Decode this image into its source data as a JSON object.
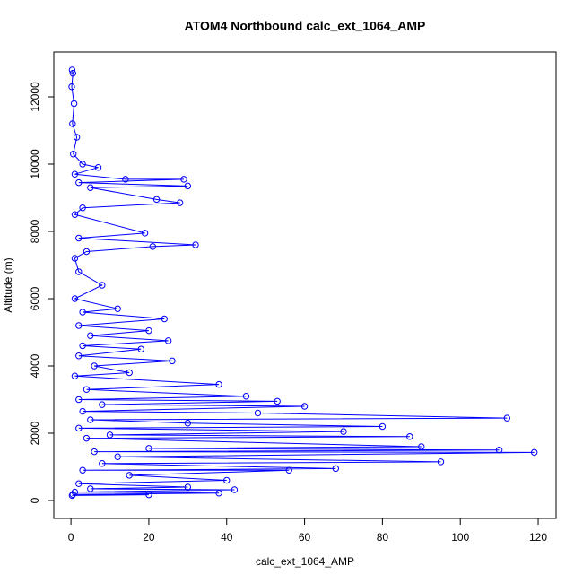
{
  "chart_data": {
    "type": "line",
    "title": "ATOM4 Northbound calc_ext_1064_AMP",
    "x_label": "calc_ext_1064_AMP",
    "y_label": "Altitude (m)",
    "color": "#0000ff",
    "markers": true,
    "x": [
      0.3,
      0.5,
      0.2,
      0.8,
      0.4,
      1.5,
      0.6,
      3,
      7,
      1,
      14,
      29,
      2,
      30,
      5,
      22,
      28,
      3,
      1,
      19,
      2,
      32,
      21,
      4,
      1,
      2,
      8,
      1,
      12,
      3,
      24,
      2,
      20,
      5,
      25,
      3,
      18,
      2,
      26,
      6,
      15,
      1,
      38,
      4,
      45,
      2,
      53,
      8,
      60,
      3,
      48,
      112,
      5,
      30,
      80,
      2,
      70,
      10,
      87,
      4,
      90,
      20,
      110,
      6,
      119,
      12,
      95,
      8,
      68,
      3,
      56,
      15,
      40,
      2,
      30,
      5,
      42,
      1,
      38,
      0.5,
      20,
      0.3
    ],
    "values": [
      12800,
      12700,
      12300,
      11800,
      11200,
      10800,
      10300,
      10000,
      9900,
      9700,
      9550,
      9550,
      9450,
      9350,
      9300,
      8950,
      8850,
      8700,
      8500,
      7950,
      7800,
      7600,
      7550,
      7400,
      7200,
      6800,
      6400,
      6000,
      5700,
      5600,
      5400,
      5200,
      5050,
      4900,
      4750,
      4600,
      4500,
      4300,
      4150,
      4000,
      3800,
      3700,
      3450,
      3300,
      3100,
      3000,
      2950,
      2850,
      2800,
      2650,
      2600,
      2450,
      2400,
      2300,
      2200,
      2150,
      2050,
      1950,
      1900,
      1850,
      1600,
      1550,
      1500,
      1450,
      1430,
      1300,
      1150,
      1100,
      950,
      900,
      900,
      750,
      600,
      500,
      400,
      350,
      320,
      250,
      220,
      180,
      170,
      150
    ],
    "xlim": [
      -4.4,
      124.6
    ],
    "xticks": [
      0,
      20,
      40,
      60,
      80,
      100,
      120
    ],
    "ylim": [
      -533,
      13333
    ],
    "yticks": [
      0,
      2000,
      4000,
      6000,
      8000,
      10000,
      12000
    ]
  }
}
